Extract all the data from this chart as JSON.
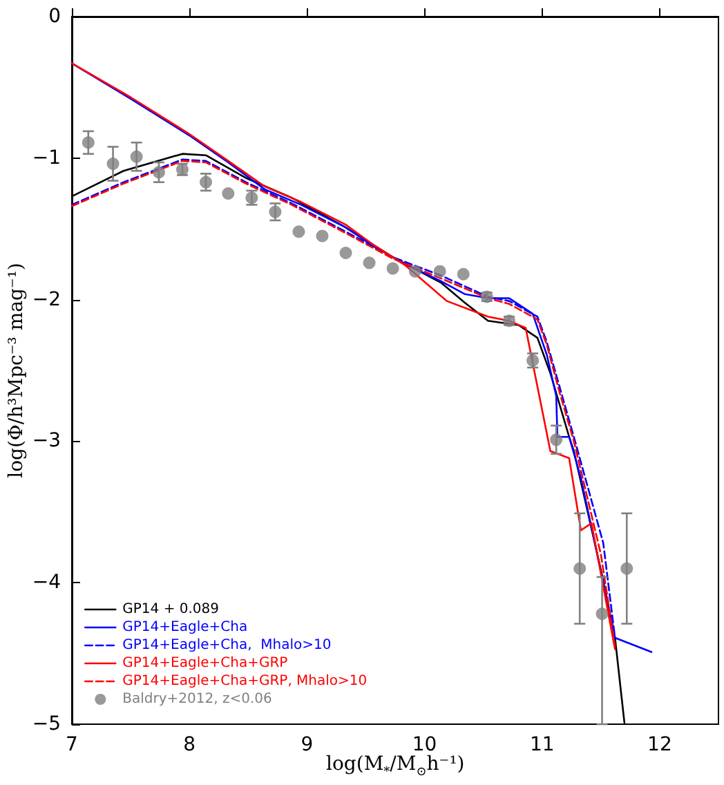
{
  "chart_data": {
    "type": "line",
    "xlabel": "log(M$_{*}$/M$_{⊙}$h⁻¹)",
    "ylabel": "log(Φ/h³Mpc⁻³ mag⁻¹)",
    "xlim": [
      7,
      12.5
    ],
    "xticks": [
      7,
      8,
      9,
      10,
      11,
      12
    ],
    "ylim": [
      -5,
      0
    ],
    "yticks": [
      -5,
      -4,
      -3,
      -2,
      -1,
      0
    ],
    "grid": false,
    "legend": "bottom left",
    "series": [
      {
        "name": "GP14 + 0.089",
        "color": "#000000",
        "line_style": "solid",
        "x": [
          7,
          7.44,
          7.94,
          8.14,
          8.48,
          8.87,
          9.33,
          9.73,
          10.14,
          10.34,
          10.54,
          10.8,
          10.96,
          11.07,
          11.23,
          11.27,
          11.5,
          11.62,
          11.7
        ],
        "values": [
          -1.27,
          -1.09,
          -0.97,
          -0.98,
          -1.14,
          -1.28,
          -1.49,
          -1.7,
          -1.88,
          -2.02,
          -2.15,
          -2.18,
          -2.27,
          -2.52,
          -2.97,
          -3.07,
          -3.91,
          -4.39,
          -4.99
        ]
      },
      {
        "name": "GP14+Eagle+Cha",
        "color": "#0000ff",
        "line_style": "solid",
        "x": [
          7,
          7.5,
          8,
          8.33,
          8.64,
          8.95,
          9.33,
          9.56,
          9.84,
          10.14,
          10.34,
          10.54,
          10.72,
          10.92,
          11.04,
          11.12,
          11.13,
          11.23,
          11.33,
          11.62,
          11.93
        ],
        "values": [
          -0.33,
          -0.58,
          -0.84,
          -1.03,
          -1.22,
          -1.33,
          -1.49,
          -1.62,
          -1.75,
          -1.87,
          -1.96,
          -1.99,
          -1.99,
          -2.1,
          -2.39,
          -2.68,
          -2.97,
          -2.97,
          -3.26,
          -4.39,
          -4.49
        ]
      },
      {
        "name": "GP14+Eagle+Cha,  Mhalo>10",
        "color": "#0000ff",
        "line_style": "dashed",
        "x": [
          7,
          7.44,
          7.94,
          8.14,
          8.48,
          8.87,
          9.33,
          9.73,
          10.14,
          10.54,
          10.72,
          10.96,
          11.04,
          11.15,
          11.27,
          11.52,
          11.62
        ],
        "values": [
          -1.33,
          -1.17,
          -1.01,
          -1.02,
          -1.17,
          -1.32,
          -1.52,
          -1.7,
          -1.83,
          -1.98,
          -2.01,
          -2.12,
          -2.3,
          -2.62,
          -2.97,
          -3.72,
          -4.39
        ]
      },
      {
        "name": "GP14+Eagle+Cha+GRP",
        "color": "#ff0000",
        "line_style": "solid",
        "x": [
          7,
          7.5,
          8,
          8.33,
          8.64,
          8.95,
          9.33,
          9.56,
          9.84,
          10.19,
          10.54,
          10.72,
          10.86,
          11,
          11.07,
          11.23,
          11.33,
          11.42,
          11.62
        ],
        "values": [
          -0.33,
          -0.57,
          -0.83,
          -1.02,
          -1.2,
          -1.31,
          -1.47,
          -1.61,
          -1.76,
          -2.01,
          -2.12,
          -2.15,
          -2.2,
          -2.78,
          -3.07,
          -3.12,
          -3.63,
          -3.58,
          -4.47
        ]
      },
      {
        "name": "GP14+Eagle+Cha+GRP, Mhalo>10",
        "color": "#ff0000",
        "line_style": "dashed",
        "x": [
          7,
          7.44,
          7.94,
          8.14,
          8.48,
          8.87,
          9.33,
          9.73,
          10.14,
          10.54,
          10.72,
          10.96,
          11.04,
          11.15,
          11.27,
          11.5,
          11.62
        ],
        "values": [
          -1.34,
          -1.18,
          -1.02,
          -1.03,
          -1.18,
          -1.33,
          -1.53,
          -1.71,
          -1.85,
          -1.99,
          -2.03,
          -2.14,
          -2.32,
          -2.66,
          -3.0,
          -3.8,
          -4.45
        ]
      },
      {
        "name": "Baldry+2012, z<0.06",
        "type": "scatter",
        "marker": "circle",
        "color": "#808080",
        "x": [
          7.14,
          7.35,
          7.55,
          7.74,
          7.94,
          8.14,
          8.33,
          8.53,
          8.73,
          8.93,
          9.13,
          9.33,
          9.53,
          9.73,
          9.92,
          10.13,
          10.33,
          10.53,
          10.72,
          10.92,
          11.12,
          11.32,
          11.51,
          11.72
        ],
        "values": [
          -0.89,
          -1.04,
          -0.99,
          -1.1,
          -1.08,
          -1.17,
          -1.25,
          -1.28,
          -1.38,
          -1.52,
          -1.55,
          -1.67,
          -1.74,
          -1.78,
          -1.8,
          -1.8,
          -1.82,
          -1.98,
          -2.15,
          -2.43,
          -2.99,
          -3.9,
          -4.22,
          -3.9
        ],
        "errors": [
          0.08,
          0.12,
          0.1,
          0.07,
          0.04,
          0.06,
          null,
          0.05,
          0.06,
          null,
          null,
          null,
          null,
          null,
          null,
          null,
          null,
          0.03,
          0.03,
          0.05,
          0.1,
          0.39,
          [
            -5,
            -3.96
          ],
          0.39
        ]
      }
    ]
  }
}
